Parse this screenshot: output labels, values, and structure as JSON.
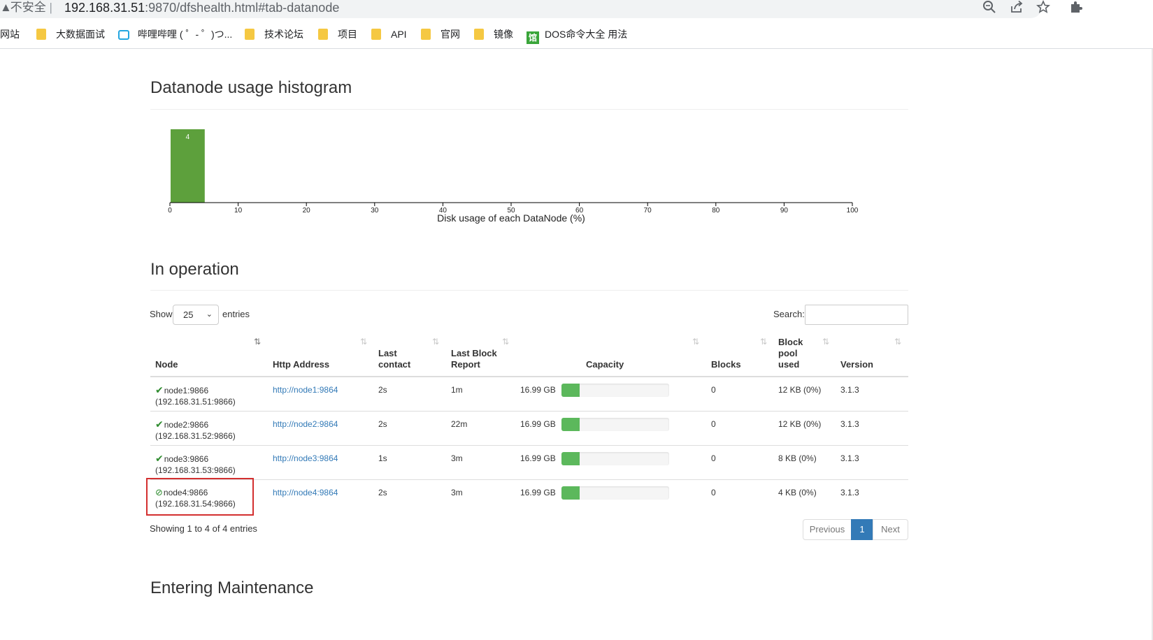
{
  "browser": {
    "security_label": "不安全",
    "url_host": "192.168.31.51",
    "url_rest": ":9870/dfshealth.html#tab-datanode",
    "bookmarks": [
      {
        "label": "网站",
        "icon": "none"
      },
      {
        "label": "大数据面试",
        "icon": "folder-icon"
      },
      {
        "label": "哔哩哔哩 ( ゜- ゜)つ...",
        "icon": "bilibili-icon"
      },
      {
        "label": "技术论坛",
        "icon": "folder-icon"
      },
      {
        "label": "项目",
        "icon": "folder-icon"
      },
      {
        "label": "API",
        "icon": "folder-icon"
      },
      {
        "label": "官网",
        "icon": "folder-icon"
      },
      {
        "label": "镜像",
        "icon": "folder-icon"
      },
      {
        "label": "DOS命令大全 用法",
        "icon": "dos-icon"
      }
    ]
  },
  "histogram": {
    "title": "Datanode usage histogram",
    "bar_color": "#5da03c",
    "chart_data": {
      "type": "bar",
      "title": "Datanode usage histogram",
      "xlabel": "Disk usage of each DataNode (%)",
      "ylabel": "",
      "xlim": [
        0,
        100
      ],
      "x_ticks": [
        "0",
        "10",
        "20",
        "30",
        "40",
        "50",
        "60",
        "70",
        "80",
        "90",
        "100"
      ],
      "bins": [
        {
          "from": 0,
          "to": 5,
          "count": 4
        }
      ],
      "data_labels": [
        "4"
      ]
    }
  },
  "in_operation": {
    "title": "In operation",
    "show_label": "Show",
    "page_length": "25",
    "entries_label": "entries",
    "search_label": "Search:",
    "columns": [
      "Node",
      "Http Address",
      "Last contact",
      "Last Block Report",
      "Capacity",
      "Blocks",
      "Block pool used",
      "Version"
    ],
    "rows": [
      {
        "status": "check-icon",
        "node": "node1:9866",
        "ip": "(192.168.31.51:9866)",
        "http": "http://node1:9864",
        "last_contact": "2s",
        "last_block_report": "1m",
        "capacity": "16.99 GB",
        "used_fraction": 0.17,
        "blocks": "0",
        "block_pool_used": "12 KB (0%)",
        "version": "3.1.3"
      },
      {
        "status": "check-icon",
        "node": "node2:9866",
        "ip": "(192.168.31.52:9866)",
        "http": "http://node2:9864",
        "last_contact": "2s",
        "last_block_report": "22m",
        "capacity": "16.99 GB",
        "used_fraction": 0.17,
        "blocks": "0",
        "block_pool_used": "12 KB (0%)",
        "version": "3.1.3"
      },
      {
        "status": "check-icon",
        "node": "node3:9866",
        "ip": "(192.168.31.53:9866)",
        "http": "http://node3:9864",
        "last_contact": "1s",
        "last_block_report": "3m",
        "capacity": "16.99 GB",
        "used_fraction": 0.17,
        "blocks": "0",
        "block_pool_used": "8 KB (0%)",
        "version": "3.1.3"
      },
      {
        "status": "decommissioned-icon",
        "node": "node4:9866",
        "ip": "(192.168.31.54:9866)",
        "http": "http://node4:9864",
        "last_contact": "2s",
        "last_block_report": "3m",
        "capacity": "16.99 GB",
        "used_fraction": 0.17,
        "blocks": "0",
        "block_pool_used": "4 KB (0%)",
        "version": "3.1.3"
      }
    ],
    "info": "Showing 1 to 4 of 4 entries",
    "pager": {
      "previous": "Previous",
      "current": "1",
      "next": "Next"
    }
  },
  "entering_maintenance": {
    "title": "Entering Maintenance"
  },
  "colors": {
    "accent": "#337ab7",
    "bar_green": "#5cb85c",
    "highlight": "#d32f2f"
  }
}
